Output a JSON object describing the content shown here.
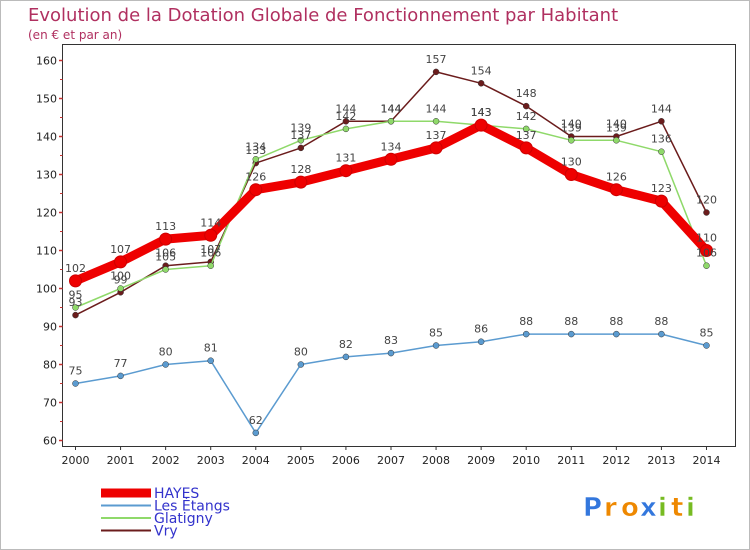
{
  "chart_data": {
    "type": "line",
    "title": "Evolution de la Dotation Globale de Fonctionnement par Habitant",
    "subtitle": "(en € et par an)",
    "xlabel": "",
    "ylabel": "",
    "ylim": [
      60,
      160
    ],
    "yticks": [
      60,
      70,
      80,
      90,
      100,
      110,
      120,
      130,
      140,
      150,
      160
    ],
    "categories": [
      "2000",
      "2001",
      "2002",
      "2003",
      "2004",
      "2005",
      "2006",
      "2007",
      "2008",
      "2009",
      "2010",
      "2011",
      "2012",
      "2013",
      "2014"
    ],
    "series": [
      {
        "name": "Vry",
        "color": "#6b1c1c",
        "values": [
          93,
          99,
          106,
          107,
          133,
          137,
          144,
          144,
          157,
          154,
          148,
          140,
          140,
          144,
          120
        ]
      },
      {
        "name": "Glatigny",
        "color": "#8fd96a",
        "values": [
          95,
          100,
          105,
          106,
          134,
          139,
          142,
          144,
          144,
          143,
          142,
          139,
          139,
          136,
          106
        ]
      },
      {
        "name": "Les Étangs",
        "color": "#5b9bd0",
        "values": [
          75,
          77,
          80,
          81,
          62,
          80,
          82,
          83,
          85,
          86,
          88,
          88,
          88,
          88,
          85
        ]
      },
      {
        "name": "HAYES",
        "color": "#ee0000",
        "values": [
          102,
          107,
          113,
          114,
          126,
          128,
          131,
          134,
          137,
          143,
          137,
          130,
          126,
          123,
          110
        ]
      }
    ],
    "legend": [
      "HAYES",
      "Les Étangs",
      "Glatigny",
      "Vry"
    ],
    "legend_position": "bottom-left",
    "grid": false
  },
  "branding": {
    "letters": [
      "P",
      "r",
      "o",
      "x",
      "i",
      "t",
      "i"
    ],
    "letter_colors": [
      "#3377dd",
      "#ee8800",
      "#ee8800",
      "#3377dd",
      "#77bb22",
      "#ee8800",
      "#77bb22"
    ]
  }
}
